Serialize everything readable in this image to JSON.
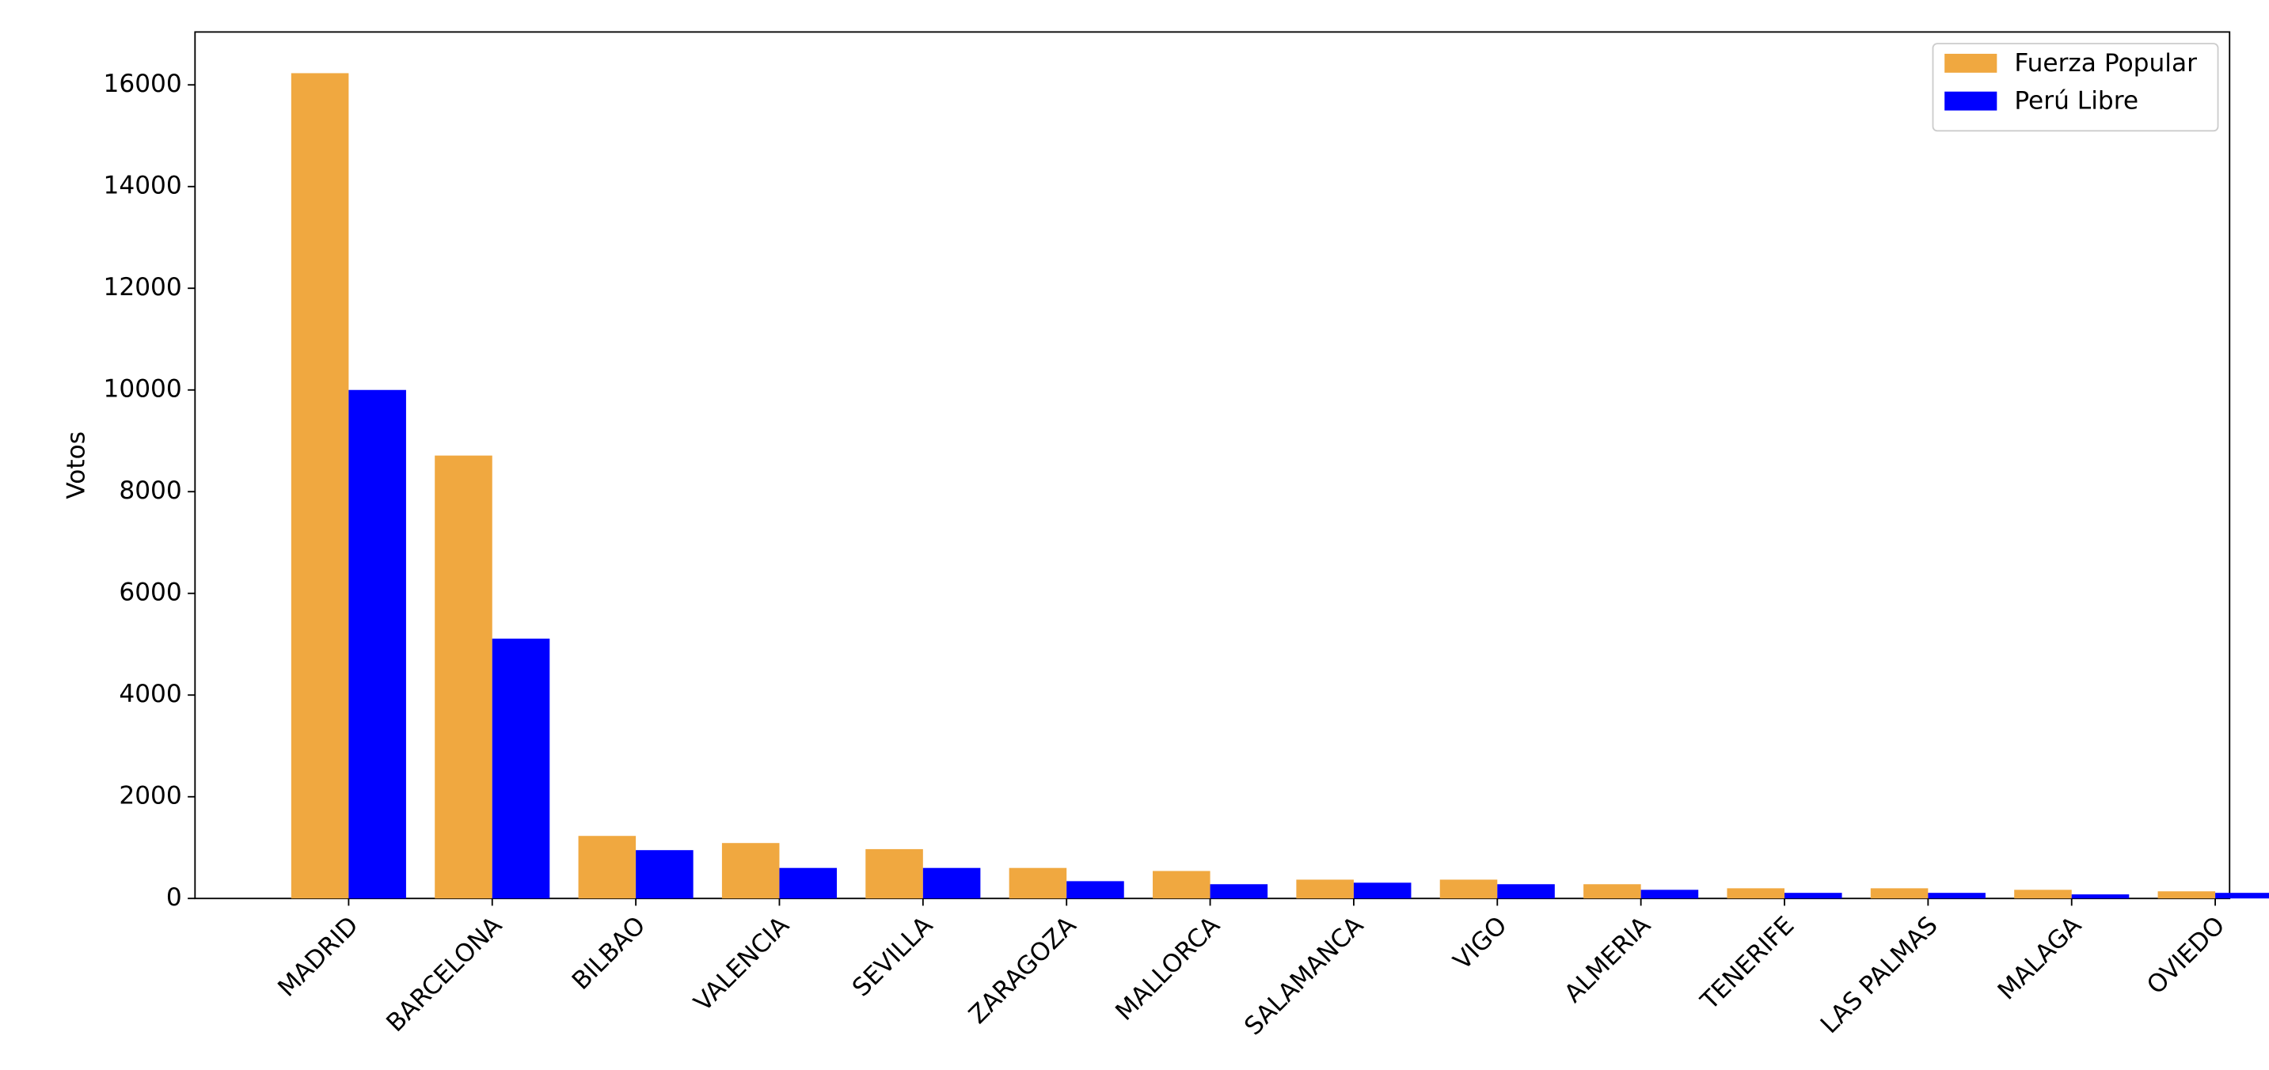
{
  "chart_data": {
    "type": "bar",
    "y_label": "Votos",
    "categories": [
      "MADRID",
      "BARCELONA",
      "BILBAO",
      "VALENCIA",
      "SEVILLA",
      "ZARAGOZA",
      "MALLORCA",
      "SALAMANCA",
      "VIGO",
      "ALMERIA",
      "TENERIFE",
      "LAS PALMAS",
      "MALAGA",
      "OVIEDO"
    ],
    "series": [
      {
        "name": "Fuerza Popular",
        "color": "#f0a840",
        "values": [
          16230,
          8710,
          1230,
          1090,
          970,
          600,
          540,
          370,
          370,
          280,
          200,
          200,
          170,
          140
        ]
      },
      {
        "name": "Perú Libre",
        "color": "#0000ff",
        "values": [
          10000,
          5110,
          950,
          600,
          600,
          340,
          280,
          310,
          280,
          170,
          110,
          110,
          80,
          110
        ]
      }
    ],
    "ylim": [
      0,
      17040
    ],
    "yticks": [
      0,
      2000,
      4000,
      6000,
      8000,
      10000,
      12000,
      14000,
      16000
    ],
    "legend": "upper-right"
  }
}
